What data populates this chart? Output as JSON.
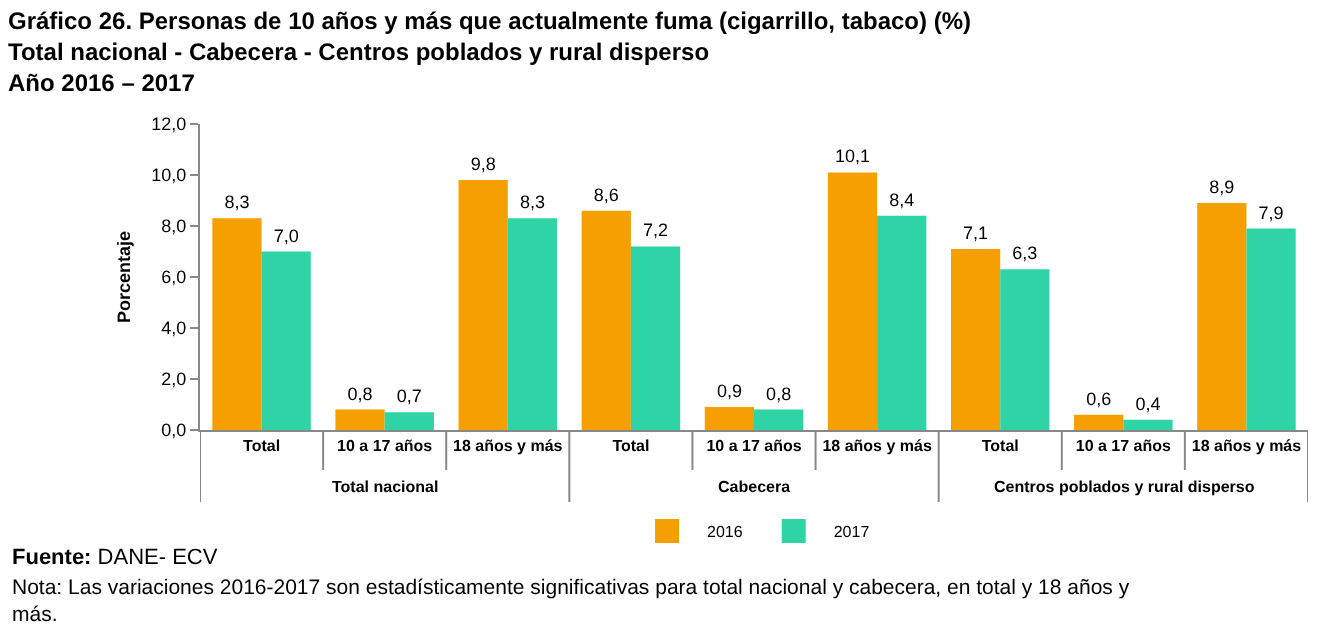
{
  "chart_data": {
    "type": "bar",
    "title": "Gráfico 26. Personas de 10 años y más que actualmente fuma (cigarrillo, tabaco) (%)\nTotal nacional - Cabecera - Centros poblados y rural disperso\nAño 2016 – 2017",
    "ylabel": "Porcentaje",
    "categories": [
      "Total",
      "10 a 17 años",
      "18 años y más",
      "Total",
      "10 a 17 años",
      "18 años y más",
      "Total",
      "10 a 17 años",
      "18 años y más"
    ],
    "series": [
      {
        "name": "2016",
        "color": "#f5a000",
        "values": [
          8.3,
          0.8,
          9.8,
          8.6,
          0.9,
          10.1,
          7.1,
          0.6,
          8.9
        ],
        "value_labels": [
          "8,3",
          "0,8",
          "9,8",
          "8,6",
          "0,9",
          "10,1",
          "7,1",
          "0,6",
          "8,9"
        ]
      },
      {
        "name": "2017",
        "color": "#2ed3a6",
        "values": [
          7.0,
          0.7,
          8.3,
          7.2,
          0.8,
          8.4,
          6.3,
          0.4,
          7.9
        ],
        "value_labels": [
          "7,0",
          "0,7",
          "8,3",
          "7,2",
          "0,8",
          "8,4",
          "6,3",
          "0,4",
          "7,9"
        ]
      }
    ],
    "ylim": [
      0,
      12
    ],
    "yticks": [
      {
        "value": 0,
        "label": "0,0"
      },
      {
        "value": 2,
        "label": "2,0"
      },
      {
        "value": 4,
        "label": "4,0"
      },
      {
        "value": 6,
        "label": "6,0"
      },
      {
        "value": 8,
        "label": "8,0"
      },
      {
        "value": 10,
        "label": "10,0"
      },
      {
        "value": 12,
        "label": "12,0"
      }
    ],
    "legend": "bottom",
    "annotations": [
      "Total nacional",
      "Cabecera",
      "Centros poblados y rural disperso",
      "Fuente: DANE- ECV",
      "Nota: Las variaciones 2016-2017 son estadísticamente significativas para total nacional y cabecera, en total y 18 años y\nmás."
    ]
  }
}
